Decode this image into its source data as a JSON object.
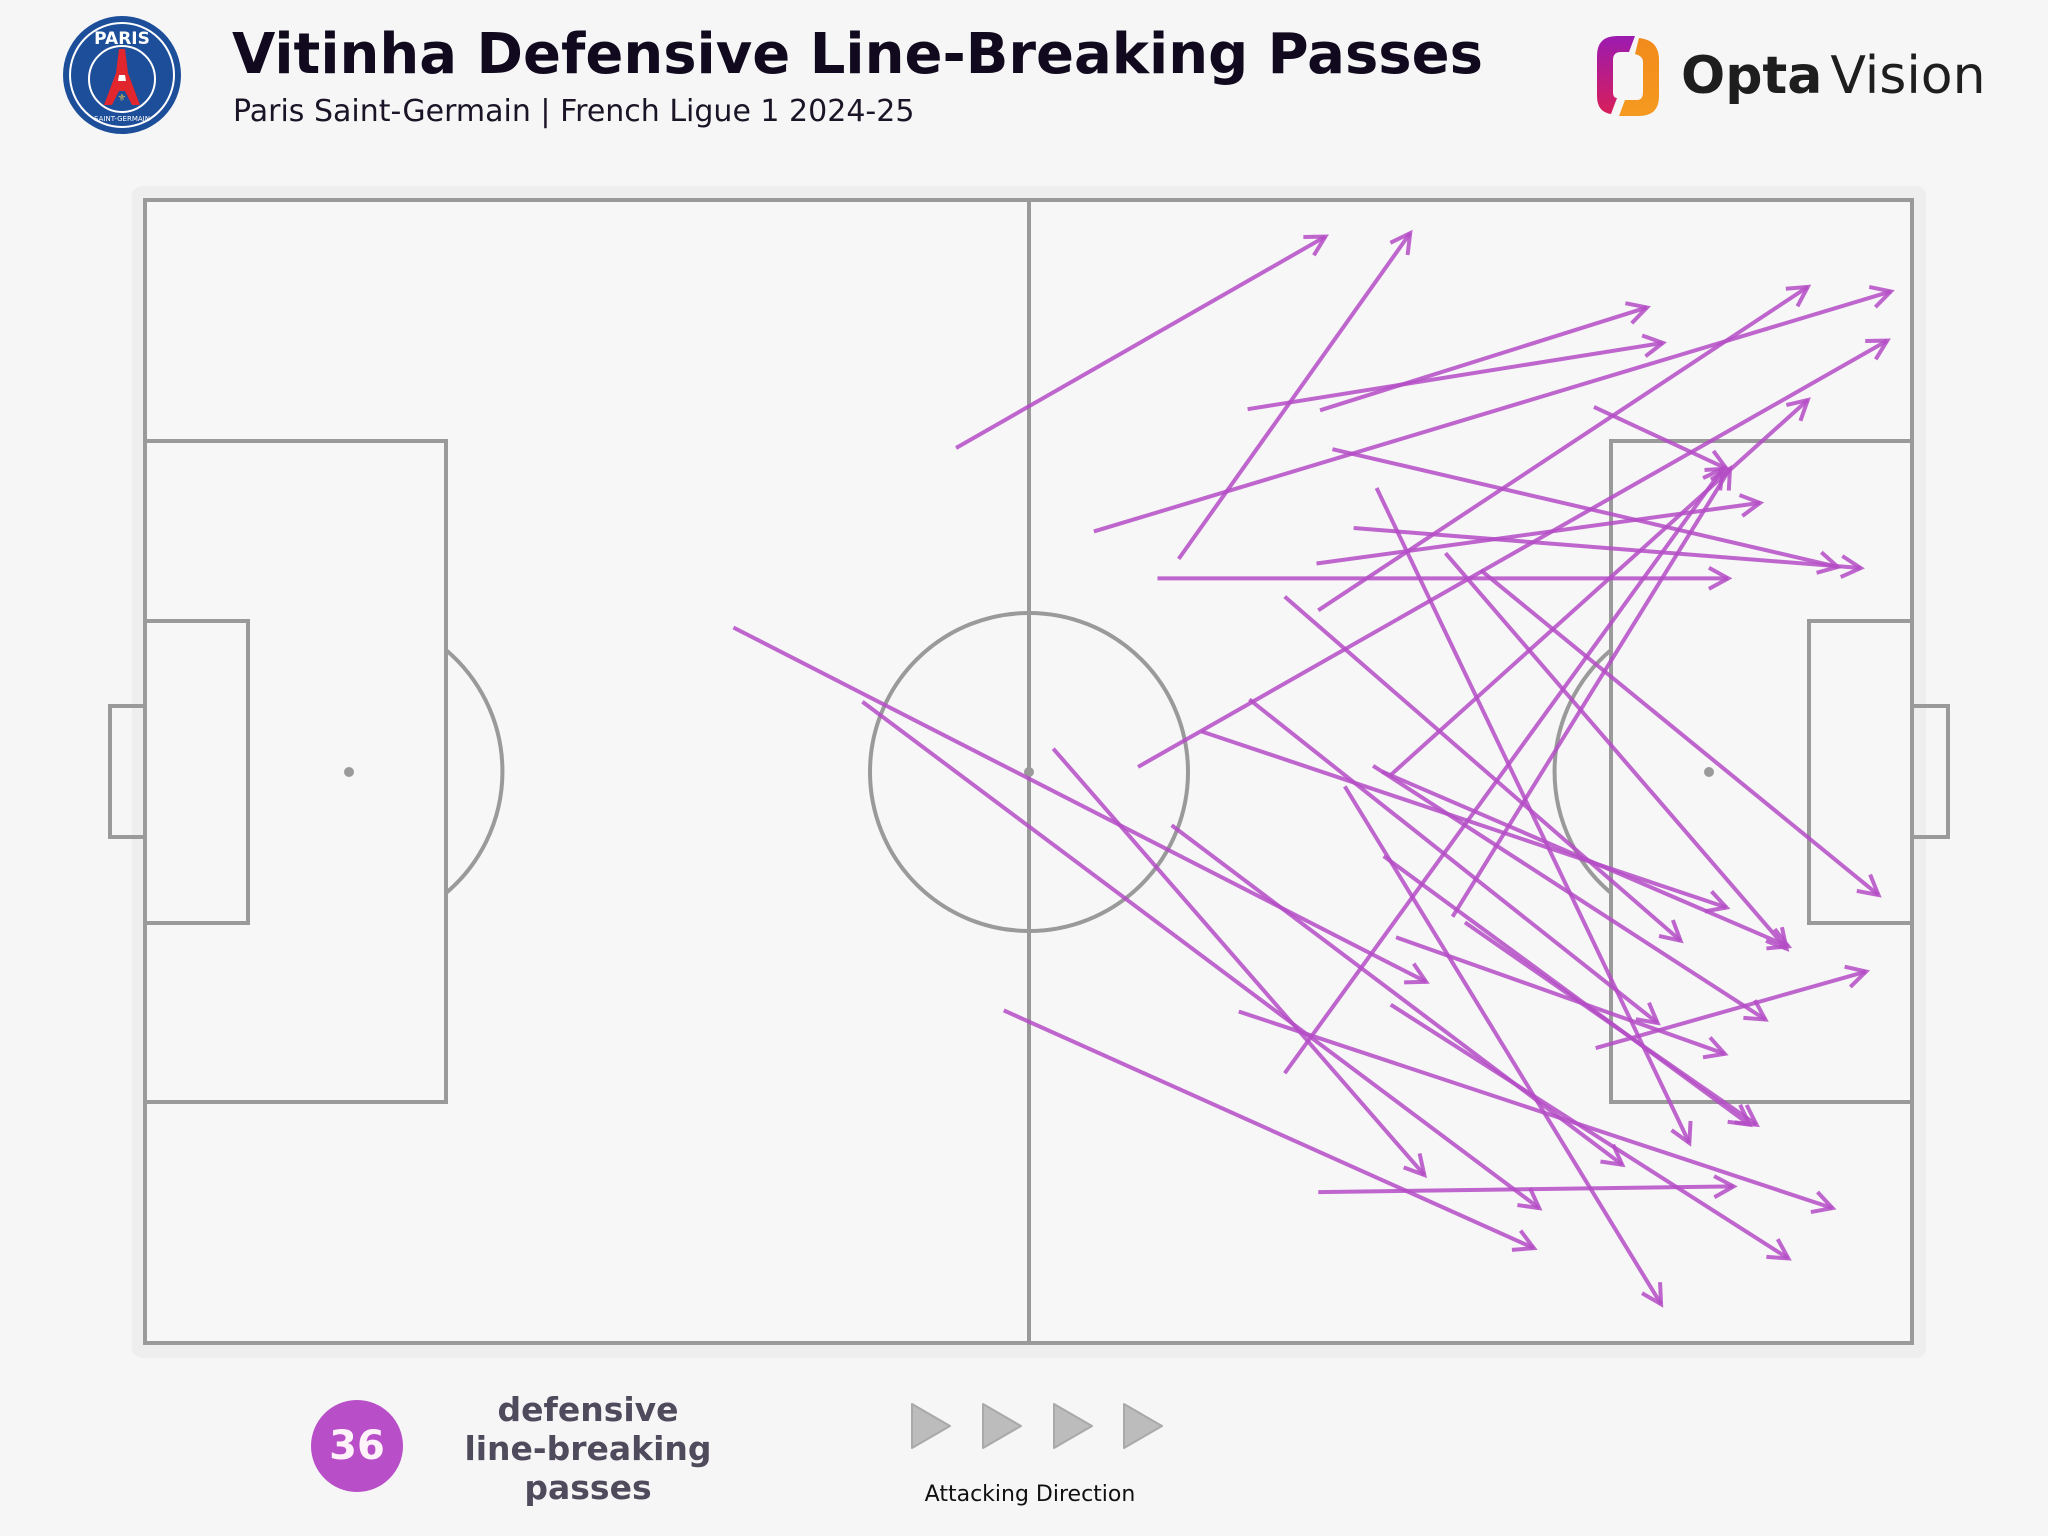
{
  "header": {
    "title": "Vitinha Defensive Line-Breaking Passes",
    "subtitle": "Paris Saint-Germain | French Ligue 1 2024-25",
    "club_logo": {
      "icon": "psg-crest-icon",
      "text_top": "PARIS",
      "text_bottom": "SAINT-GERMAIN"
    },
    "brand": {
      "icon": "opta-vision-logo-icon",
      "word1": "Opta",
      "word2": "Vision"
    }
  },
  "legend": {
    "count": "36",
    "count_label_lines": [
      "defensive",
      "line-breaking",
      "passes"
    ],
    "direction_label": "Attacking Direction",
    "direction_icon": "triangle-right-icon"
  },
  "colors": {
    "background": "#f6f6f6",
    "pitch_panel": "#eeeeee",
    "pitch_lines": "#9a9a9a",
    "pass_arrow": "#b44cc6",
    "count_badge": "#b84fc8",
    "title": "#110a1f"
  },
  "chart_data": {
    "type": "scatter",
    "subtype": "pass-map-arrows",
    "title": "Vitinha Defensive Line-Breaking Passes",
    "subtitle": "Paris Saint-Germain | French Ligue 1 2024-25",
    "pitch": {
      "x_range": [
        0,
        100
      ],
      "y_range": [
        0,
        100
      ],
      "attacking_direction": "left-to-right"
    },
    "total_passes": 36,
    "legend": [
      "36 defensive line-breaking passes",
      "Attacking Direction"
    ],
    "passes": [
      {
        "x1": 45.9,
        "y1": 21.7,
        "x2": 66.8,
        "y2": 3.2
      },
      {
        "x1": 58.5,
        "y1": 31.4,
        "x2": 71.6,
        "y2": 2.9
      },
      {
        "x1": 62.4,
        "y1": 18.3,
        "x2": 85.9,
        "y2": 12.5
      },
      {
        "x1": 66.5,
        "y1": 18.4,
        "x2": 85.0,
        "y2": 9.4
      },
      {
        "x1": 53.7,
        "y1": 29.0,
        "x2": 98.8,
        "y2": 8.0
      },
      {
        "x1": 67.2,
        "y1": 21.8,
        "x2": 95.8,
        "y2": 32.1
      },
      {
        "x1": 82.0,
        "y1": 18.1,
        "x2": 89.5,
        "y2": 23.5
      },
      {
        "x1": 68.4,
        "y1": 28.7,
        "x2": 97.1,
        "y2": 32.2
      },
      {
        "x1": 66.3,
        "y1": 31.8,
        "x2": 91.4,
        "y2": 26.5
      },
      {
        "x1": 57.3,
        "y1": 33.1,
        "x2": 89.6,
        "y2": 33.1
      },
      {
        "x1": 66.4,
        "y1": 35.9,
        "x2": 94.1,
        "y2": 7.6
      },
      {
        "x1": 56.2,
        "y1": 49.6,
        "x2": 98.6,
        "y2": 12.3
      },
      {
        "x1": 70.5,
        "y1": 50.3,
        "x2": 94.1,
        "y2": 17.5
      },
      {
        "x1": 74.0,
        "y1": 62.7,
        "x2": 89.7,
        "y2": 23.5
      },
      {
        "x1": 69.7,
        "y1": 25.2,
        "x2": 87.4,
        "y2": 82.5
      },
      {
        "x1": 73.6,
        "y1": 30.9,
        "x2": 92.9,
        "y2": 65.5
      },
      {
        "x1": 75.6,
        "y1": 32.4,
        "x2": 98.1,
        "y2": 60.8
      },
      {
        "x1": 64.5,
        "y1": 34.7,
        "x2": 86.9,
        "y2": 64.8
      },
      {
        "x1": 33.3,
        "y1": 37.4,
        "x2": 72.5,
        "y2": 68.4
      },
      {
        "x1": 40.6,
        "y1": 43.9,
        "x2": 78.9,
        "y2": 88.2
      },
      {
        "x1": 51.4,
        "y1": 48.0,
        "x2": 72.4,
        "y2": 85.3
      },
      {
        "x1": 48.6,
        "y1": 70.9,
        "x2": 78.6,
        "y2": 91.7
      },
      {
        "x1": 59.8,
        "y1": 46.5,
        "x2": 89.5,
        "y2": 61.9
      },
      {
        "x1": 62.5,
        "y1": 43.7,
        "x2": 85.6,
        "y2": 72.0
      },
      {
        "x1": 69.5,
        "y1": 49.5,
        "x2": 91.7,
        "y2": 71.7
      },
      {
        "x1": 70.0,
        "y1": 50.0,
        "x2": 93.0,
        "y2": 65.3
      },
      {
        "x1": 67.9,
        "y1": 51.3,
        "x2": 85.8,
        "y2": 96.6
      },
      {
        "x1": 70.1,
        "y1": 57.4,
        "x2": 90.8,
        "y2": 80.9
      },
      {
        "x1": 70.8,
        "y1": 64.5,
        "x2": 89.4,
        "y2": 74.7
      },
      {
        "x1": 74.7,
        "y1": 63.2,
        "x2": 91.2,
        "y2": 80.9
      },
      {
        "x1": 58.1,
        "y1": 54.7,
        "x2": 83.6,
        "y2": 84.4
      },
      {
        "x1": 61.9,
        "y1": 71.0,
        "x2": 95.5,
        "y2": 88.2
      },
      {
        "x1": 82.1,
        "y1": 74.2,
        "x2": 97.4,
        "y2": 67.5
      },
      {
        "x1": 64.5,
        "y1": 76.4,
        "x2": 89.3,
        "y2": 23.5
      },
      {
        "x1": 66.4,
        "y1": 86.8,
        "x2": 89.9,
        "y2": 86.3
      },
      {
        "x1": 70.5,
        "y1": 70.4,
        "x2": 93.0,
        "y2": 92.6
      }
    ]
  }
}
